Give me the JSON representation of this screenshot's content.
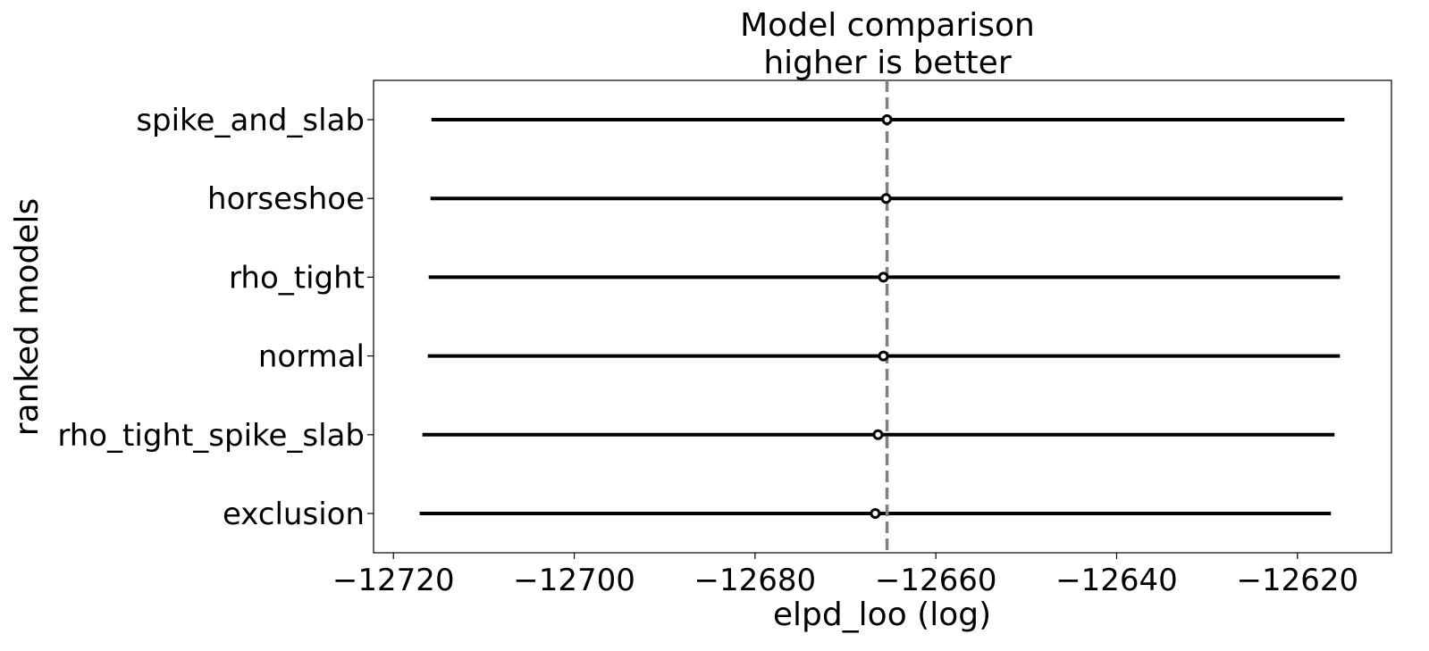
{
  "chart_data": {
    "type": "scatter",
    "title": "Model comparison\nhigher is better",
    "title_lines": [
      "Model comparison",
      "higher is better"
    ],
    "xlabel": "elpd_loo (log)",
    "ylabel": "ranked models",
    "xlim": [
      -12722.2,
      -12609.6
    ],
    "xticks": [
      -12720,
      -12700,
      -12680,
      -12660,
      -12640,
      -12620
    ],
    "xtick_labels": [
      "−12720",
      "−12700",
      "−12680",
      "−12660",
      "−12640",
      "−12620"
    ],
    "grid": false,
    "reference_line": -12665.4,
    "colors": {
      "points": "#000000",
      "reference": "#808080"
    },
    "models": [
      {
        "name": "spike_and_slab",
        "elpd": -12665.4,
        "lower": -12715.8,
        "upper": -12614.8
      },
      {
        "name": "horseshoe",
        "elpd": -12665.5,
        "lower": -12715.9,
        "upper": -12615.0
      },
      {
        "name": "rho_tight",
        "elpd": -12665.8,
        "lower": -12716.1,
        "upper": -12615.3
      },
      {
        "name": "normal",
        "elpd": -12665.8,
        "lower": -12716.2,
        "upper": -12615.3
      },
      {
        "name": "rho_tight_spike_slab",
        "elpd": -12666.4,
        "lower": -12716.8,
        "upper": -12615.9
      },
      {
        "name": "exclusion",
        "elpd": -12666.7,
        "lower": -12717.1,
        "upper": -12616.3
      }
    ]
  }
}
